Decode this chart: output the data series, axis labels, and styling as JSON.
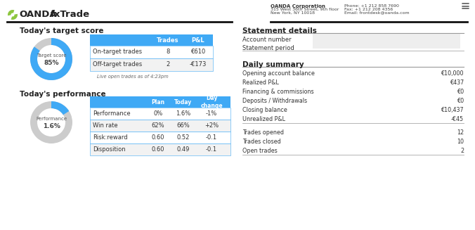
{
  "bg_color": "#ffffff",
  "header": {
    "company_name": "OANDA Corporation",
    "company_address1": "315 West 36th Street, 9th floor",
    "company_address2": "New York, NY 10018",
    "phone": "Phone: +1 212 858 7690",
    "fax": "Fax: +1 212 208 4356",
    "email": "Email: frontdesk@oanda.com",
    "logo_leaf_color": "#8dc63f",
    "divider_color": "#111111"
  },
  "target_section": {
    "title": "Today's target score",
    "donut_pct": 85,
    "donut_color": "#3fa9f5",
    "donut_bg": "#cccccc",
    "label1": "Target score",
    "label2": "85%",
    "table_header_bg": "#3fa9f5",
    "table_headers": [
      "",
      "Trades",
      "P&L"
    ],
    "table_row1": [
      "On-target trades",
      "8",
      "€610"
    ],
    "table_row2": [
      "Off-target trades",
      "2",
      "-€173"
    ],
    "table_border_color": "#3fa9f5",
    "footnote": "Live open trades as of 4:23pm"
  },
  "performance_section": {
    "title": "Today's performance",
    "donut_pct": 1.6,
    "donut_max": 10,
    "donut_color": "#3fa9f5",
    "donut_bg": "#cccccc",
    "label1": "Performance",
    "label2": "1.6%",
    "table_header_bg": "#3fa9f5",
    "table_headers": [
      "",
      "Plan",
      "Today",
      "Day\nchange"
    ],
    "table_rows": [
      [
        "Performance",
        "0%",
        "1.6%",
        "-1%"
      ],
      [
        "Win rate",
        "62%",
        "66%",
        "+2%"
      ],
      [
        "Risk:reward",
        "0.60",
        "0.52",
        "-0.1"
      ],
      [
        "Disposition",
        "0.60",
        "0.49",
        "-0.1"
      ]
    ],
    "table_border_color": "#3fa9f5"
  },
  "statement_section": {
    "title": "Statement details",
    "row1_label": "Account number",
    "row2_label": "Statement period",
    "value_bg": "#eeeeee"
  },
  "summary_section": {
    "title": "Daily summary",
    "rows": [
      [
        "Opening account balance",
        "€10,000"
      ],
      [
        "Realized P&L",
        "€437"
      ],
      [
        "Financing & commissions",
        "€0"
      ],
      [
        "Deposits / Withdrawals",
        "€0"
      ],
      [
        "Closing balance",
        "€10,437"
      ],
      [
        "Unrealized P&L",
        "-€45"
      ]
    ],
    "rows2": [
      [
        "Trades opened",
        "12"
      ],
      [
        "Trades closed",
        "10"
      ],
      [
        "Open trades",
        "2"
      ]
    ]
  },
  "hamburger_color": "#666666"
}
